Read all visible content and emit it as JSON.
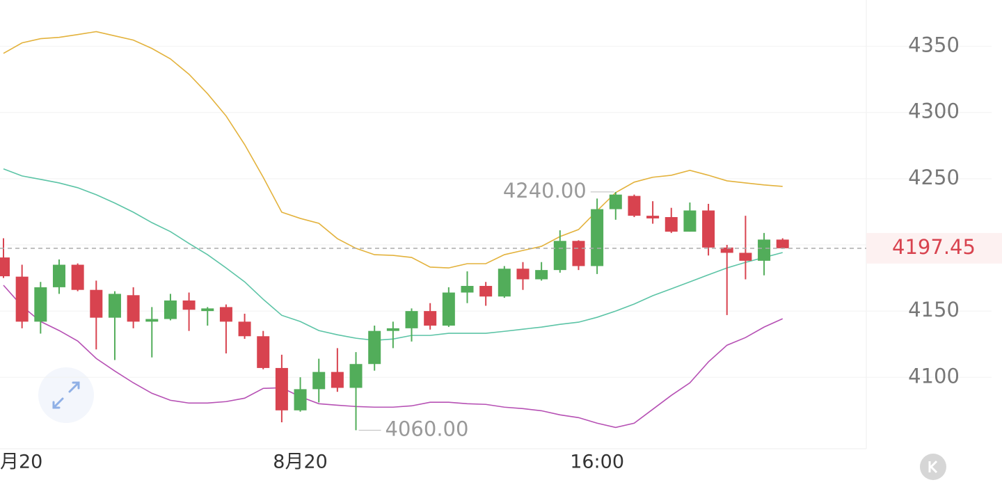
{
  "chart_data": {
    "type": "candlestick",
    "categories": [
      "月20",
      null,
      null,
      null,
      null,
      null,
      null,
      null,
      null,
      null,
      null,
      null,
      null,
      null,
      null,
      null,
      "8月20",
      null,
      null,
      null,
      null,
      null,
      null,
      null,
      null,
      null,
      null,
      null,
      null,
      null,
      null,
      null,
      "16:00",
      null,
      null,
      null,
      null,
      null,
      null,
      null,
      null,
      null,
      null
    ],
    "open": [
      4190.5,
      4176,
      4142,
      4168,
      4185,
      4166,
      4145,
      4162,
      4142,
      4144,
      4158,
      4150,
      4153,
      4142,
      4131,
      4107,
      4075,
      4091,
      4104,
      4092,
      4110,
      4135,
      4137,
      4150,
      4139,
      4164,
      4169,
      4161,
      4182,
      4174,
      4181,
      4203,
      4184,
      4227,
      4237,
      4222,
      4221,
      4210,
      4226,
      4198,
      4194,
      4188,
      4204
    ],
    "high": [
      4205,
      4185,
      4172,
      4189,
      4186,
      4173,
      4165,
      4168,
      4153,
      4163,
      4164,
      4153,
      4155,
      4148,
      4135,
      4117,
      4100,
      4114,
      4122,
      4119,
      4139,
      4142,
      4152,
      4156,
      4168,
      4180,
      4172,
      4184,
      4187,
      4187,
      4211,
      4203.5,
      4235,
      4240,
      4238,
      4233,
      4228,
      4232,
      4231,
      4200,
      4222,
      4209,
      4205
    ],
    "low": [
      4175,
      4137,
      4133,
      4163,
      4165,
      4121,
      4113,
      4137,
      4115,
      4143,
      4135,
      4139,
      4118,
      4129,
      4106,
      4066,
      4074,
      4081,
      4089,
      4060,
      4105,
      4122,
      4127,
      4136,
      4138,
      4156,
      4154,
      4160,
      4166,
      4173,
      4179,
      4181,
      4178,
      4219,
      4221,
      4216,
      4209,
      4210,
      4192,
      4147,
      4174,
      4177,
      4197
    ],
    "close": [
      4176.3,
      4142,
      4168,
      4185,
      4166,
      4145,
      4163,
      4142,
      4144,
      4158,
      4151,
      4152,
      4142,
      4131,
      4107,
      4075,
      4091,
      4104,
      4092,
      4110,
      4135,
      4137,
      4150,
      4139,
      4164,
      4169,
      4161,
      4182,
      4174,
      4181,
      4203,
      4184,
      4227,
      4238,
      4222,
      4220,
      4210,
      4226,
      4198,
      4194,
      4188,
      4204,
      4197.45
    ],
    "up_color": "#52ad5a",
    "down_color": "#d8434f",
    "series": [
      {
        "color": "#e3b23c",
        "values": [
          4344.7,
          4352.6,
          4355.8,
          4356.8,
          4358.9,
          4361.1,
          4357.9,
          4354.7,
          4348.4,
          4340.5,
          4328.9,
          4314.2,
          4297.4,
          4275.8,
          4251.1,
          4224.7,
          4220,
          4216.3,
          4204.7,
          4197.4,
          4192.6,
          4192.1,
          4190.5,
          4183.2,
          4182.6,
          4185.8,
          4185.8,
          4192.6,
          4195.8,
          4198.9,
          4206.3,
          4211.6,
          4225.8,
          4239.5,
          4247.4,
          4251.1,
          4252.6,
          4256.3,
          4252.6,
          4248.4,
          4246.8,
          4245.3,
          4244.2
        ]
      },
      {
        "color": "#5cc4a6",
        "values": [
          4257.4,
          4252.1,
          4249.5,
          4246.8,
          4243.2,
          4237.9,
          4231.6,
          4224.7,
          4216.8,
          4210,
          4201.1,
          4192.6,
          4182.6,
          4172.1,
          4158.9,
          4146.8,
          4142.1,
          4135.3,
          4132.1,
          4129.5,
          4127.9,
          4128.9,
          4131.6,
          4131.6,
          4133.2,
          4133.2,
          4133.2,
          4134.7,
          4136.3,
          4137.9,
          4140,
          4141.6,
          4145.3,
          4150,
          4155.3,
          4161.6,
          4166.8,
          4172.1,
          4177.4,
          4182.6,
          4186.8,
          4190.5,
          4194.2
        ]
      },
      {
        "color": "#b650b4",
        "values": [
          4169.5,
          4153.7,
          4142.1,
          4135.3,
          4127.4,
          4114.2,
          4104.7,
          4095.8,
          4087.9,
          4082.6,
          4080.5,
          4080.5,
          4081.6,
          4084.2,
          4091.6,
          4092.1,
          4085.3,
          4080,
          4078.9,
          4077.9,
          4077.4,
          4077.4,
          4078.4,
          4081.1,
          4081.1,
          4080,
          4079.5,
          4077.4,
          4076.3,
          4074.7,
          4071.6,
          4069.5,
          4065.3,
          4062.1,
          4065.3,
          4075.8,
          4086.3,
          4095.8,
          4111.6,
          4124.2,
          4130,
          4137.9,
          4144.2
        ]
      }
    ],
    "ylim": [
      4046,
      4385
    ],
    "yticks": [
      4100,
      4150,
      4200,
      4250,
      4300,
      4350
    ],
    "ytick_labels_shown": [
      4100,
      4150,
      4250,
      4300,
      4350
    ],
    "grid": true,
    "high_marker": {
      "value": 4240,
      "label": "4240.00",
      "index": 33
    },
    "low_marker": {
      "value": 4060,
      "label": "4060.00",
      "index": 19
    },
    "last_price": 4197.45,
    "last_price_color": "#d8434f"
  }
}
